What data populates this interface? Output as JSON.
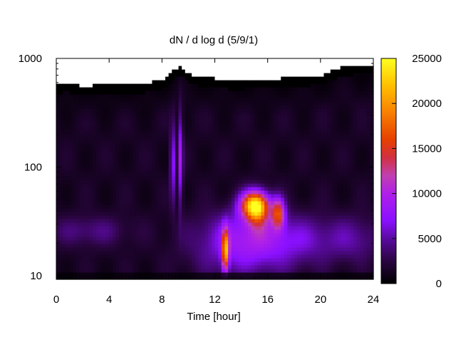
{
  "chart_data": {
    "type": "heatmap",
    "title": "dN / d log d (5/9/1)",
    "xlabel": "Time [hour]",
    "ylabel": "",
    "x_range": [
      0,
      24
    ],
    "y_range": [
      9.3,
      1000
    ],
    "y_scale": "log",
    "x_ticks": [
      0,
      4,
      8,
      12,
      16,
      20,
      24
    ],
    "x_tick_labels": [
      "0",
      "4",
      "8",
      "12",
      "16",
      "20",
      "24"
    ],
    "y_ticks": [
      10,
      100,
      1000
    ],
    "y_tick_labels": [
      "10",
      "100",
      "1000"
    ],
    "colorbar": {
      "range": [
        0,
        25000
      ],
      "ticks": [
        0,
        5000,
        10000,
        15000,
        20000,
        25000
      ],
      "tick_labels": [
        "0",
        "5000",
        "10000",
        "15000",
        "20000",
        "25000"
      ],
      "palette": [
        "#000000",
        "#3a0a5a",
        "#7a10ff",
        "#c040c0",
        "#ff5000",
        "#ffd000",
        "#ffff30"
      ]
    },
    "grid": false,
    "background_value": 2000,
    "no_data_color": "#ffffff",
    "features": [
      {
        "t": 2.5,
        "d": 26,
        "sigma_t": 2.2,
        "sigma_logd": 0.1,
        "value": 2800
      },
      {
        "t": 8.8,
        "d": 110,
        "sigma_t": 0.12,
        "sigma_logd": 0.25,
        "value": 7000
      },
      {
        "t": 9.4,
        "d": 120,
        "sigma_t": 0.13,
        "sigma_logd": 0.3,
        "value": 7500
      },
      {
        "t": 12.8,
        "d": 17,
        "sigma_t": 0.18,
        "sigma_logd": 0.14,
        "value": 16000
      },
      {
        "t": 15.0,
        "d": 45,
        "sigma_t": 0.75,
        "sigma_logd": 0.09,
        "value": 20000
      },
      {
        "t": 15.3,
        "d": 38,
        "sigma_t": 0.55,
        "sigma_logd": 0.12,
        "value": 6000
      },
      {
        "t": 16.8,
        "d": 38,
        "sigma_t": 0.35,
        "sigma_logd": 0.1,
        "value": 12500
      },
      {
        "t": 14.5,
        "d": 25,
        "sigma_t": 2.5,
        "sigma_logd": 0.15,
        "value": 6000
      },
      {
        "t": 14.5,
        "d": 15,
        "sigma_t": 2.8,
        "sigma_logd": 0.15,
        "value": 4000
      },
      {
        "t": 19.5,
        "d": 22,
        "sigma_t": 2.2,
        "sigma_logd": 0.15,
        "value": 3000
      },
      {
        "t": 22.8,
        "d": 22,
        "sigma_t": 1.3,
        "sigma_logd": 0.15,
        "value": 2500
      }
    ],
    "upper_limit_profile": [
      {
        "t": 0,
        "d": 590
      },
      {
        "t": 1,
        "d": 600
      },
      {
        "t": 2,
        "d": 560
      },
      {
        "t": 4,
        "d": 580
      },
      {
        "t": 6,
        "d": 570
      },
      {
        "t": 7,
        "d": 600
      },
      {
        "t": 8,
        "d": 640
      },
      {
        "t": 8.5,
        "d": 700
      },
      {
        "t": 9.0,
        "d": 820
      },
      {
        "t": 9.5,
        "d": 850
      },
      {
        "t": 10,
        "d": 720
      },
      {
        "t": 11,
        "d": 680
      },
      {
        "t": 12,
        "d": 660
      },
      {
        "t": 13,
        "d": 640
      },
      {
        "t": 14,
        "d": 640
      },
      {
        "t": 17,
        "d": 660
      },
      {
        "t": 18,
        "d": 680
      },
      {
        "t": 20,
        "d": 700
      },
      {
        "t": 21,
        "d": 780
      },
      {
        "t": 22,
        "d": 860
      },
      {
        "t": 23,
        "d": 880
      },
      {
        "t": 24,
        "d": 890
      }
    ]
  }
}
